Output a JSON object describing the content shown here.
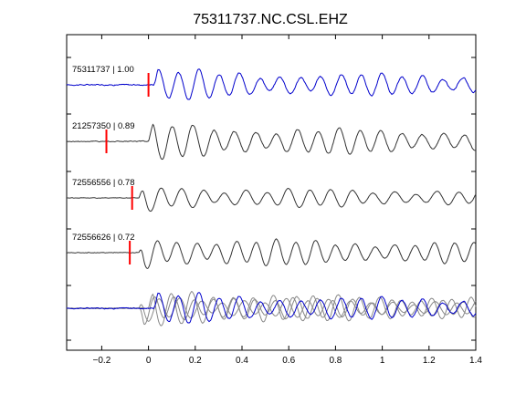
{
  "chart_data": {
    "type": "line",
    "title": "75311737.NC.CSL.EHZ",
    "xlabel": "",
    "ylabel": "",
    "xlim": [
      -0.35,
      1.4
    ],
    "x_ticks": [
      -0.2,
      0,
      0.2,
      0.4,
      0.6,
      0.8,
      1,
      1.2,
      1.4
    ],
    "x_tick_labels": [
      "−0.2",
      "0",
      "0.2",
      "0.4",
      "0.6",
      "0.8",
      "1",
      "1.2",
      "1.4"
    ],
    "y_tick_count": 6,
    "grid": false,
    "colors": {
      "reference": "#0000cc",
      "trace": "#333333",
      "overlay": "#888888",
      "pick": "#ff0000",
      "axis": "#000000"
    },
    "traces": [
      {
        "label": "75311737 | 1.00",
        "pick_time": 0.0,
        "color": "#0000cc",
        "onset": 0.02,
        "amp": 14,
        "noise": 1.0,
        "f": 11.5
      },
      {
        "label": "21257350 | 0.89",
        "pick_time": -0.18,
        "color": "#333333",
        "onset": 0.0,
        "amp": 16,
        "noise": 0.8,
        "f": 11.2
      },
      {
        "label": "72556556 | 0.78",
        "pick_time": -0.07,
        "color": "#333333",
        "onset": -0.04,
        "amp": 11,
        "noise": 0.4,
        "f": 11.0
      },
      {
        "label": "72556626 | 0.72",
        "pick_time": -0.08,
        "color": "#333333",
        "onset": -0.04,
        "amp": 15,
        "noise": 0.5,
        "f": 11.8
      }
    ],
    "overlay": {
      "description": "stack of all traces aligned",
      "count": 4
    }
  }
}
